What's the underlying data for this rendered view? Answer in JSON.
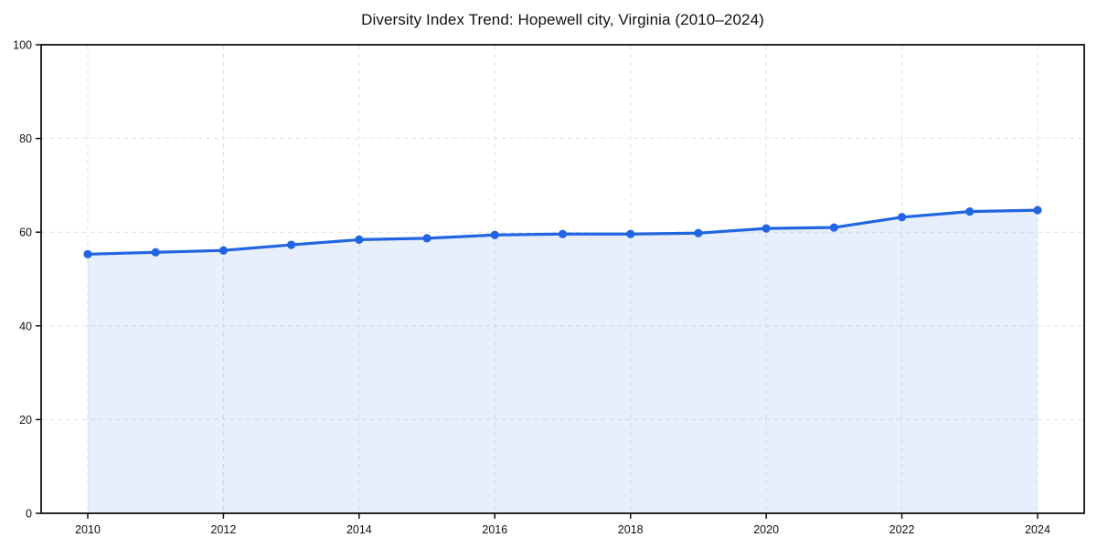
{
  "page": {
    "background_color": "#ffffff"
  },
  "chart_data": {
    "type": "line",
    "title": "Diversity Index Trend: Hopewell city, Virginia (2010–2024)",
    "xlabel": "",
    "ylabel": "",
    "x": [
      2010,
      2011,
      2012,
      2013,
      2014,
      2015,
      2016,
      2017,
      2018,
      2019,
      2020,
      2021,
      2022,
      2023,
      2024
    ],
    "series": [
      {
        "name": "Diversity Index",
        "values": [
          55.3,
          55.7,
          56.1,
          57.3,
          58.4,
          58.7,
          59.4,
          59.6,
          59.6,
          59.8,
          60.8,
          61.0,
          63.2,
          64.4,
          64.7
        ]
      }
    ],
    "ylim": [
      0,
      100
    ],
    "yticks": [
      0,
      20,
      40,
      60,
      80,
      100
    ],
    "xticks": [
      2010,
      2012,
      2014,
      2016,
      2018,
      2020,
      2022,
      2024
    ],
    "grid": {
      "on": true,
      "style": "dashed",
      "color": "#e2e2e2"
    },
    "legend": "none",
    "area_fill": true,
    "markers": true,
    "colors": {
      "line": "#2166e0",
      "marker": "#2166e0",
      "fill": "#2166e0",
      "fill_opacity": 0.1,
      "axis": "#111111",
      "tick_text": "#111111",
      "background": "#ffffff"
    }
  }
}
